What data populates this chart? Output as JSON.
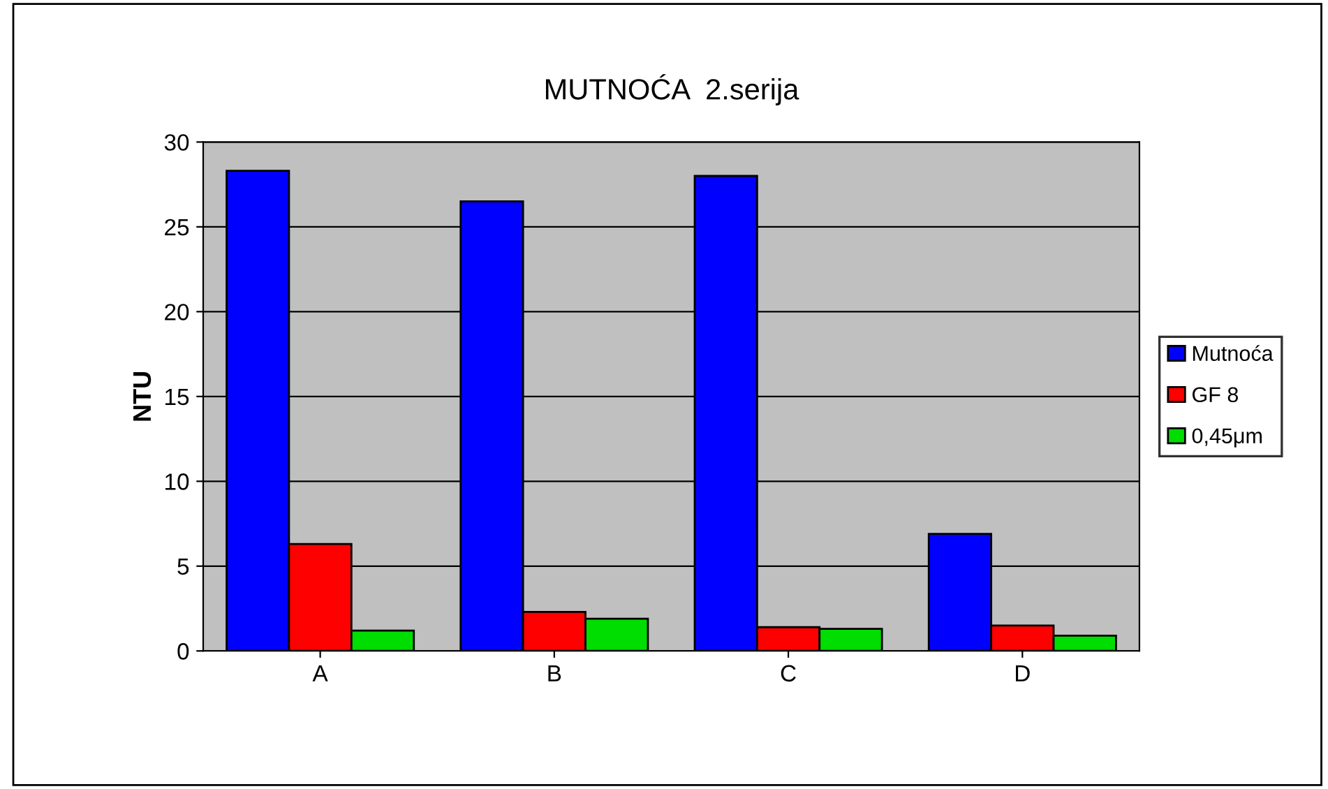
{
  "chart_data": {
    "type": "bar",
    "title": "MUTNOĆA  2.serija",
    "ylabel": "NTU",
    "categories": [
      "A",
      "B",
      "C",
      "D"
    ],
    "series": [
      {
        "name": "Mutnoća",
        "color": "#0000ff",
        "values": [
          28.3,
          26.5,
          28.0,
          6.9
        ]
      },
      {
        "name": "GF 8",
        "color": "#ff0000",
        "values": [
          6.3,
          2.3,
          1.4,
          1.5
        ]
      },
      {
        "name": "0,45μm",
        "color": "#00dd00",
        "values": [
          1.2,
          1.9,
          1.3,
          0.9
        ]
      }
    ],
    "ylim": [
      0,
      30
    ],
    "yticks": [
      0,
      5,
      10,
      15,
      20,
      25,
      30
    ],
    "grid": "y",
    "legend": "right"
  }
}
